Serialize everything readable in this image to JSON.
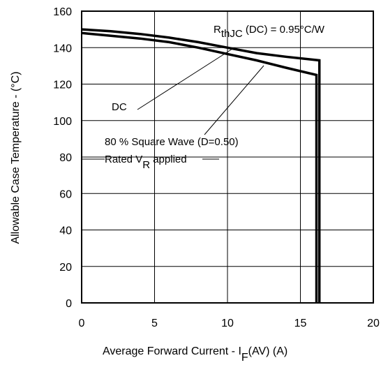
{
  "chart_data": {
    "type": "line",
    "xlabel_main": "Average Forward Current - I",
    "xlabel_sub": "F",
    "xlabel_tail": "(AV) (A)",
    "ylabel": "Allowable Case Temperature - (°C)",
    "xlim": [
      0,
      20
    ],
    "ylim": [
      0,
      160
    ],
    "x_ticks": [
      "0",
      "5",
      "10",
      "15",
      "20"
    ],
    "y_ticks": [
      "0",
      "20",
      "40",
      "60",
      "80",
      "100",
      "120",
      "140",
      "160"
    ],
    "grid": true,
    "series": [
      {
        "name": "DC",
        "x": [
          0,
          2,
          4,
          6,
          8,
          10,
          12,
          14,
          16.3,
          16.3
        ],
        "y": [
          150,
          149,
          147.5,
          145.5,
          143,
          140,
          137,
          135,
          133,
          0
        ]
      },
      {
        "name": "80 % Square Wave (D=0.50)",
        "x": [
          0,
          2,
          4,
          6,
          8,
          10,
          12,
          14,
          16.1,
          16.1
        ],
        "y": [
          148,
          146.5,
          145,
          143,
          140,
          136.5,
          133,
          129,
          125,
          0
        ]
      }
    ],
    "annotations": {
      "rth_main": "R",
      "rth_sub": "thJC",
      "rth_tail": " (DC) = 0.95°C/W",
      "dc_label": "DC",
      "sq_label": "80 % Square Wave (D=0.50)",
      "rated_main": "Rated V",
      "rated_sub": "R",
      "rated_tail": " applied"
    }
  }
}
